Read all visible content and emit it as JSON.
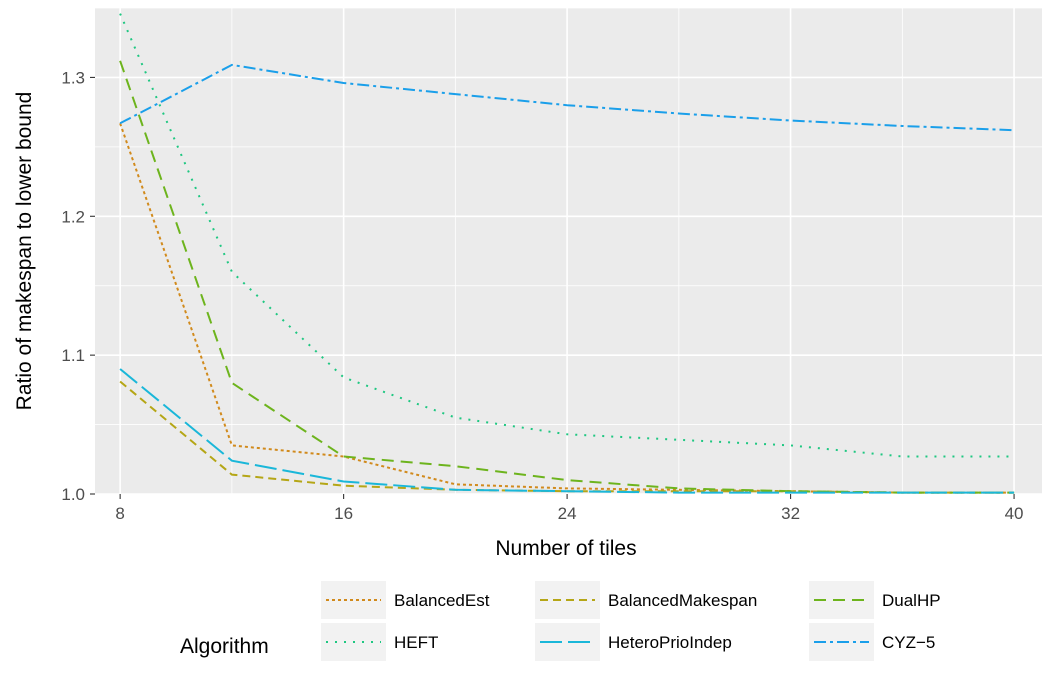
{
  "chart_data": {
    "type": "line",
    "xlabel": "Number of tiles",
    "ylabel": "Ratio of makespan to lower bound",
    "xlim": [
      7.1,
      41.0
    ],
    "ylim": [
      1.0,
      1.35
    ],
    "x_ticks": [
      8,
      16,
      24,
      32,
      40
    ],
    "y_ticks": [
      1.0,
      1.1,
      1.2,
      1.3
    ],
    "x_tick_labels": [
      "8",
      "16",
      "24",
      "32",
      "40"
    ],
    "y_tick_labels": [
      "1.0",
      "1.1",
      "1.2",
      "1.3"
    ],
    "grid": true,
    "legend": {
      "title": "Algorithm",
      "position": "bottom"
    },
    "x": [
      8,
      12,
      16,
      20,
      24,
      28,
      32,
      36,
      40
    ],
    "series": [
      {
        "name": "BalancedEst",
        "color": "#d18a1c",
        "dash": "dotted",
        "values": [
          1.267,
          1.035,
          1.027,
          1.007,
          1.004,
          1.003,
          1.002,
          1.001,
          1.001
        ]
      },
      {
        "name": "BalancedMakespan",
        "color": "#b5a616",
        "dash": "dashed",
        "values": [
          1.081,
          1.014,
          1.006,
          1.003,
          1.002,
          1.002,
          1.002,
          1.001,
          1.001
        ]
      },
      {
        "name": "DualHP",
        "color": "#6db41d",
        "dash": "longdash",
        "values": [
          1.312,
          1.08,
          1.027,
          1.02,
          1.01,
          1.004,
          1.002,
          1.001,
          1.001
        ]
      },
      {
        "name": "HEFT",
        "color": "#1ec781",
        "dash": "dots",
        "values": [
          1.346,
          1.16,
          1.084,
          1.055,
          1.043,
          1.039,
          1.035,
          1.027,
          1.027
        ]
      },
      {
        "name": "HeteroPrioIndep",
        "color": "#1ab7d9",
        "dash": "long",
        "values": [
          1.09,
          1.024,
          1.009,
          1.003,
          1.002,
          1.001,
          1.001,
          1.001,
          1.001
        ]
      },
      {
        "name": "CYZ−5",
        "color": "#1a9fea",
        "dash": "dotdash",
        "values": [
          1.267,
          1.309,
          1.296,
          1.288,
          1.28,
          1.274,
          1.269,
          1.265,
          1.262
        ]
      }
    ]
  }
}
